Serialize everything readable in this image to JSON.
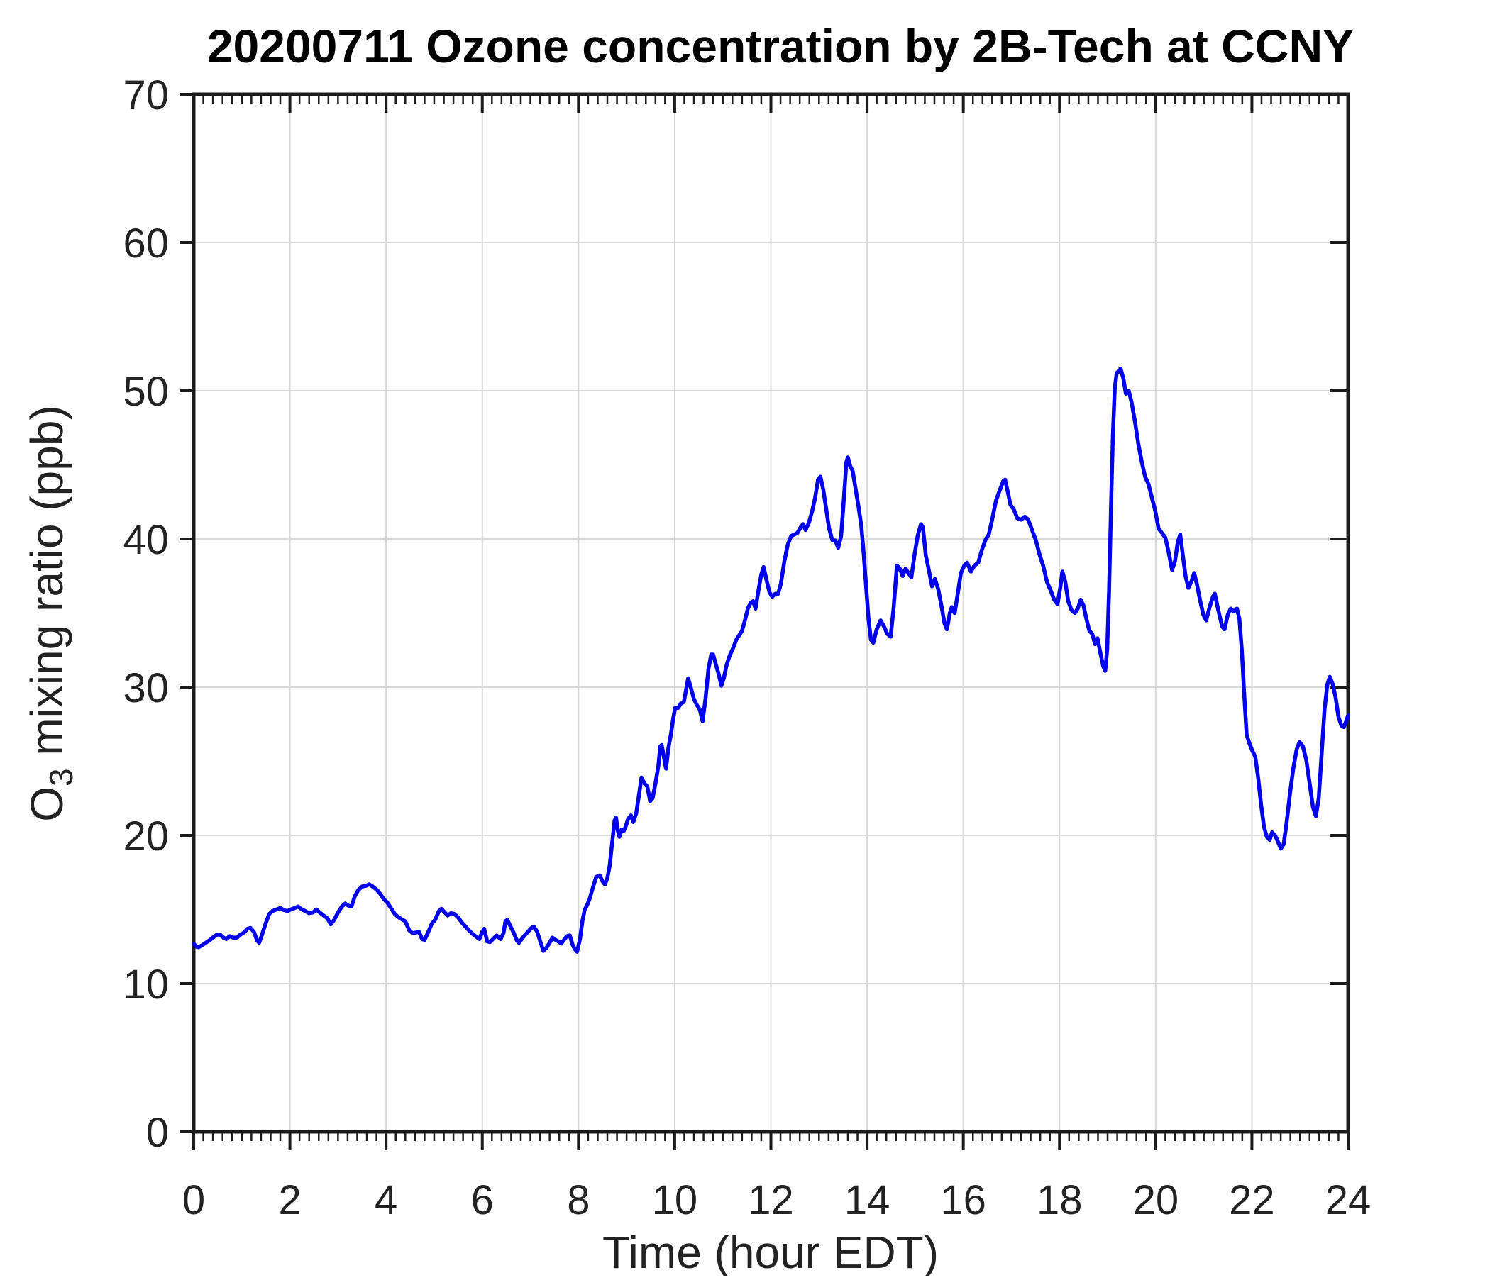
{
  "figure": {
    "background": "#ffffff"
  },
  "chart_data": {
    "type": "line",
    "title": "20200711 Ozone concentration by 2B-Tech at CCNY",
    "xlabel": "Time (hour EDT)",
    "ylabel_parts": [
      {
        "text": "O",
        "subscript": false
      },
      {
        "text": "3",
        "subscript": true
      },
      {
        "text": " mixing ratio (ppb)",
        "subscript": false
      }
    ],
    "xlim": [
      0,
      24
    ],
    "ylim": [
      0,
      70
    ],
    "x_major_ticks": [
      0,
      2,
      4,
      6,
      8,
      10,
      12,
      14,
      16,
      18,
      20,
      22,
      24
    ],
    "y_major_ticks": [
      0,
      10,
      20,
      30,
      40,
      50,
      60,
      70
    ],
    "x_minor_step": 0.2,
    "grid": true,
    "legend": null,
    "line_color": "#0000EE",
    "grid_color": "#d8d8d8",
    "axis_color": "#1c1c1c",
    "text_color": "#222222",
    "series": [
      {
        "name": "O3 mixing ratio",
        "x": [
          0.0,
          0.05,
          0.1,
          0.18,
          0.25,
          0.32,
          0.4,
          0.48,
          0.55,
          0.62,
          0.68,
          0.75,
          0.82,
          0.9,
          0.97,
          1.05,
          1.12,
          1.18,
          1.25,
          1.32,
          1.36,
          1.42,
          1.5,
          1.57,
          1.64,
          1.72,
          1.8,
          1.88,
          1.95,
          2.02,
          2.1,
          2.17,
          2.25,
          2.32,
          2.4,
          2.48,
          2.55,
          2.62,
          2.7,
          2.78,
          2.85,
          2.92,
          3.0,
          3.08,
          3.15,
          3.22,
          3.28,
          3.35,
          3.42,
          3.5,
          3.58,
          3.65,
          3.72,
          3.8,
          3.88,
          3.95,
          4.02,
          4.1,
          4.18,
          4.25,
          4.32,
          4.4,
          4.48,
          4.55,
          4.62,
          4.68,
          4.75,
          4.8,
          4.88,
          4.95,
          5.02,
          5.1,
          5.15,
          5.22,
          5.28,
          5.35,
          5.42,
          5.5,
          5.58,
          5.65,
          5.72,
          5.8,
          5.88,
          5.94,
          6.0,
          6.04,
          6.1,
          6.16,
          6.22,
          6.3,
          6.38,
          6.44,
          6.48,
          6.52,
          6.58,
          6.65,
          6.72,
          6.76,
          6.82,
          6.88,
          6.95,
          7.02,
          7.07,
          7.14,
          7.2,
          7.27,
          7.33,
          7.39,
          7.46,
          7.52,
          7.58,
          7.64,
          7.7,
          7.76,
          7.82,
          7.88,
          7.93,
          7.97,
          8.03,
          8.08,
          8.13,
          8.18,
          8.23,
          8.3,
          8.37,
          8.44,
          8.5,
          8.55,
          8.6,
          8.65,
          8.7,
          8.75,
          8.78,
          8.82,
          8.85,
          8.9,
          8.94,
          8.98,
          9.03,
          9.09,
          9.14,
          9.2,
          9.26,
          9.31,
          9.37,
          9.43,
          9.49,
          9.54,
          9.6,
          9.66,
          9.7,
          9.73,
          9.78,
          9.82,
          9.87,
          9.92,
          9.97,
          10.01,
          10.07,
          10.13,
          10.19,
          10.24,
          10.28,
          10.34,
          10.4,
          10.46,
          10.52,
          10.58,
          10.64,
          10.7,
          10.76,
          10.8,
          10.86,
          10.92,
          10.97,
          11.02,
          11.08,
          11.14,
          11.21,
          11.28,
          11.34,
          11.4,
          11.46,
          11.52,
          11.58,
          11.63,
          11.68,
          11.74,
          11.8,
          11.85,
          11.91,
          11.97,
          12.03,
          12.09,
          12.15,
          12.21,
          12.28,
          12.35,
          12.42,
          12.49,
          12.55,
          12.62,
          12.67,
          12.72,
          12.79,
          12.86,
          12.92,
          12.98,
          13.03,
          13.09,
          13.15,
          13.21,
          13.28,
          13.34,
          13.4,
          13.46,
          13.52,
          13.57,
          13.6,
          13.65,
          13.7,
          13.76,
          13.82,
          13.88,
          13.93,
          13.98,
          14.03,
          14.08,
          14.13,
          14.2,
          14.28,
          14.35,
          14.42,
          14.49,
          14.55,
          14.62,
          14.68,
          14.74,
          14.8,
          14.86,
          14.92,
          14.98,
          15.05,
          15.12,
          15.16,
          15.22,
          15.29,
          15.35,
          15.41,
          15.48,
          15.55,
          15.61,
          15.66,
          15.72,
          15.76,
          15.82,
          15.88,
          15.95,
          16.02,
          16.08,
          16.16,
          16.23,
          16.31,
          16.39,
          16.47,
          16.53,
          16.6,
          16.68,
          16.76,
          16.83,
          16.87,
          16.93,
          16.98,
          17.05,
          17.12,
          17.2,
          17.28,
          17.35,
          17.43,
          17.51,
          17.58,
          17.66,
          17.74,
          17.82,
          17.89,
          17.96,
          18.02,
          18.06,
          18.12,
          18.18,
          18.25,
          18.32,
          18.38,
          18.44,
          18.5,
          18.56,
          18.62,
          18.68,
          18.74,
          18.79,
          18.85,
          18.91,
          18.95,
          18.99,
          19.03,
          19.07,
          19.11,
          19.15,
          19.19,
          19.24,
          19.27,
          19.33,
          19.38,
          19.44,
          19.5,
          19.57,
          19.64,
          19.71,
          19.78,
          19.85,
          19.92,
          19.99,
          20.06,
          20.13,
          20.2,
          20.27,
          20.34,
          20.4,
          20.46,
          20.51,
          20.56,
          20.62,
          20.68,
          20.74,
          20.8,
          20.86,
          20.92,
          20.99,
          21.05,
          21.12,
          21.19,
          21.23,
          21.3,
          21.38,
          21.43,
          21.5,
          21.56,
          21.62,
          21.69,
          21.74,
          21.79,
          21.84,
          21.89,
          21.95,
          22.01,
          22.07,
          22.13,
          22.19,
          22.25,
          22.31,
          22.37,
          22.42,
          22.48,
          22.54,
          22.6,
          22.66,
          22.72,
          22.79,
          22.86,
          22.93,
          22.99,
          23.06,
          23.13,
          23.2,
          23.27,
          23.33,
          23.39,
          23.45,
          23.51,
          23.57,
          23.62,
          23.68,
          23.74,
          23.8,
          23.86,
          23.91,
          23.96,
          24.0
        ],
        "y": [
          12.7,
          12.5,
          12.45,
          12.6,
          12.75,
          12.9,
          13.1,
          13.3,
          13.3,
          13.1,
          13.0,
          13.2,
          13.1,
          13.1,
          13.3,
          13.45,
          13.7,
          13.75,
          13.5,
          12.9,
          12.75,
          13.3,
          14.1,
          14.7,
          14.9,
          15.0,
          15.1,
          14.95,
          14.9,
          15.0,
          15.1,
          15.2,
          15.0,
          14.9,
          14.75,
          14.8,
          15.0,
          14.8,
          14.6,
          14.4,
          14.0,
          14.3,
          14.8,
          15.2,
          15.4,
          15.25,
          15.2,
          15.9,
          16.3,
          16.55,
          16.6,
          16.7,
          16.55,
          16.35,
          16.05,
          15.7,
          15.5,
          15.1,
          14.7,
          14.5,
          14.35,
          14.2,
          13.6,
          13.4,
          13.45,
          13.5,
          13.0,
          12.95,
          13.5,
          14.05,
          14.3,
          14.9,
          15.05,
          14.8,
          14.6,
          14.75,
          14.7,
          14.45,
          14.1,
          13.85,
          13.6,
          13.35,
          13.15,
          13.0,
          13.5,
          13.7,
          12.85,
          12.8,
          13.0,
          13.25,
          13.0,
          13.4,
          14.2,
          14.3,
          13.9,
          13.45,
          12.9,
          12.75,
          13.0,
          13.25,
          13.5,
          13.75,
          13.85,
          13.5,
          12.9,
          12.2,
          12.4,
          12.7,
          13.1,
          12.95,
          12.85,
          12.7,
          12.95,
          13.2,
          13.25,
          12.6,
          12.3,
          12.15,
          13.0,
          14.2,
          15.0,
          15.3,
          15.7,
          16.5,
          17.2,
          17.3,
          16.9,
          16.7,
          17.1,
          18.0,
          19.5,
          21.0,
          21.2,
          20.3,
          19.9,
          20.4,
          20.3,
          20.6,
          21.1,
          21.35,
          20.9,
          21.5,
          22.8,
          23.9,
          23.5,
          23.3,
          22.3,
          22.5,
          23.5,
          24.7,
          26.0,
          26.1,
          25.2,
          24.5,
          25.9,
          26.8,
          27.9,
          28.6,
          28.6,
          28.9,
          29.0,
          29.9,
          30.6,
          29.9,
          29.2,
          28.8,
          28.5,
          27.7,
          29.2,
          31.2,
          32.2,
          32.2,
          31.5,
          30.8,
          30.1,
          30.6,
          31.5,
          32.1,
          32.6,
          33.2,
          33.5,
          33.8,
          34.5,
          35.3,
          35.7,
          35.8,
          35.3,
          36.5,
          37.6,
          38.1,
          37.2,
          36.4,
          36.1,
          36.3,
          36.3,
          37.0,
          38.5,
          39.6,
          40.2,
          40.3,
          40.4,
          40.8,
          41.0,
          40.6,
          41.1,
          41.9,
          42.8,
          44.0,
          44.2,
          43.3,
          42.0,
          40.7,
          39.9,
          39.9,
          39.4,
          40.2,
          42.8,
          45.2,
          45.5,
          44.9,
          44.6,
          43.4,
          42.2,
          40.9,
          39.0,
          36.8,
          34.6,
          33.2,
          33.0,
          33.9,
          34.5,
          34.1,
          33.6,
          33.4,
          35.3,
          38.2,
          38.0,
          37.5,
          38.0,
          37.7,
          37.4,
          38.8,
          40.2,
          41.0,
          40.8,
          38.9,
          37.8,
          36.8,
          37.3,
          36.6,
          35.4,
          34.3,
          33.9,
          35.0,
          35.4,
          35.0,
          36.2,
          37.7,
          38.2,
          38.4,
          37.8,
          38.2,
          38.4,
          39.3,
          40.0,
          40.3,
          41.3,
          42.6,
          43.3,
          43.9,
          44.0,
          43.1,
          42.3,
          42.0,
          41.4,
          41.3,
          41.5,
          41.3,
          40.6,
          39.9,
          39.0,
          38.2,
          37.1,
          36.5,
          35.9,
          35.6,
          36.8,
          37.8,
          37.1,
          35.8,
          35.2,
          35.0,
          35.3,
          35.9,
          35.5,
          34.6,
          33.8,
          33.6,
          32.9,
          33.3,
          32.3,
          31.4,
          31.1,
          32.5,
          36.5,
          42.0,
          47.0,
          50.2,
          51.2,
          51.3,
          51.5,
          50.8,
          49.8,
          50.0,
          49.2,
          47.9,
          46.4,
          45.2,
          44.2,
          43.7,
          42.8,
          41.9,
          40.7,
          40.4,
          40.1,
          39.1,
          37.9,
          38.5,
          39.8,
          40.3,
          39.0,
          37.5,
          36.7,
          37.1,
          37.7,
          36.9,
          35.9,
          34.9,
          34.5,
          35.4,
          36.1,
          36.3,
          35.2,
          34.1,
          33.9,
          34.9,
          35.3,
          35.1,
          35.3,
          34.6,
          32.5,
          29.5,
          26.8,
          26.2,
          25.7,
          25.3,
          23.9,
          22.1,
          20.6,
          19.9,
          19.7,
          20.2,
          20.0,
          19.6,
          19.1,
          19.4,
          20.8,
          22.8,
          24.5,
          25.8,
          26.3,
          26.0,
          25.1,
          23.5,
          21.9,
          21.3,
          22.5,
          25.5,
          28.5,
          30.2,
          30.7,
          30.2,
          29.3,
          28.0,
          27.4,
          27.3,
          27.7,
          28.1
        ]
      }
    ]
  }
}
